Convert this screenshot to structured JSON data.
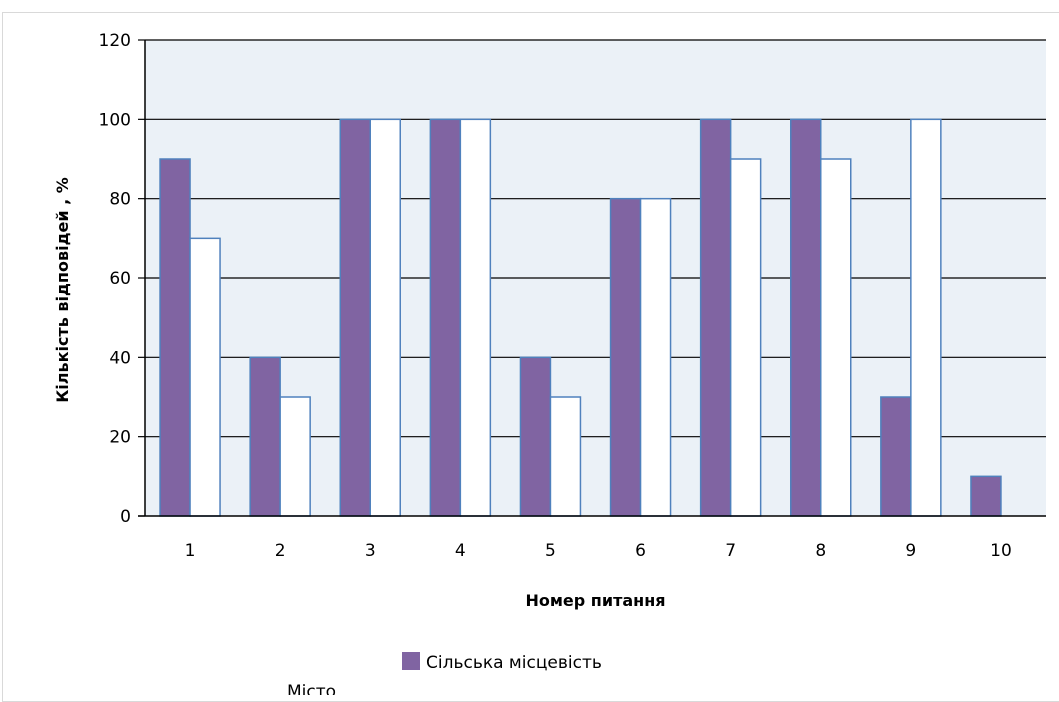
{
  "chart_data": {
    "type": "bar",
    "categories": [
      "1",
      "2",
      "3",
      "4",
      "5",
      "6",
      "7",
      "8",
      "9",
      "10"
    ],
    "series": [
      {
        "name": "Сільська місцевість",
        "values": [
          90,
          40,
          100,
          100,
          40,
          80,
          100,
          100,
          30,
          10
        ],
        "color": "#8064a2"
      },
      {
        "name": "Місто",
        "values": [
          70,
          30,
          100,
          100,
          30,
          80,
          90,
          90,
          100,
          0
        ],
        "color": "#ffffff"
      }
    ],
    "xlabel": "Номер питання",
    "ylabel": "Кількість відповідей , %",
    "ylim": [
      0,
      120
    ],
    "yticks": [
      "0",
      "20",
      "40",
      "60",
      "80",
      "100",
      "120"
    ],
    "grid": true,
    "plot_background": "#ebf1f7",
    "bar_outline": "#4f81bd",
    "legend_position": "bottom"
  }
}
